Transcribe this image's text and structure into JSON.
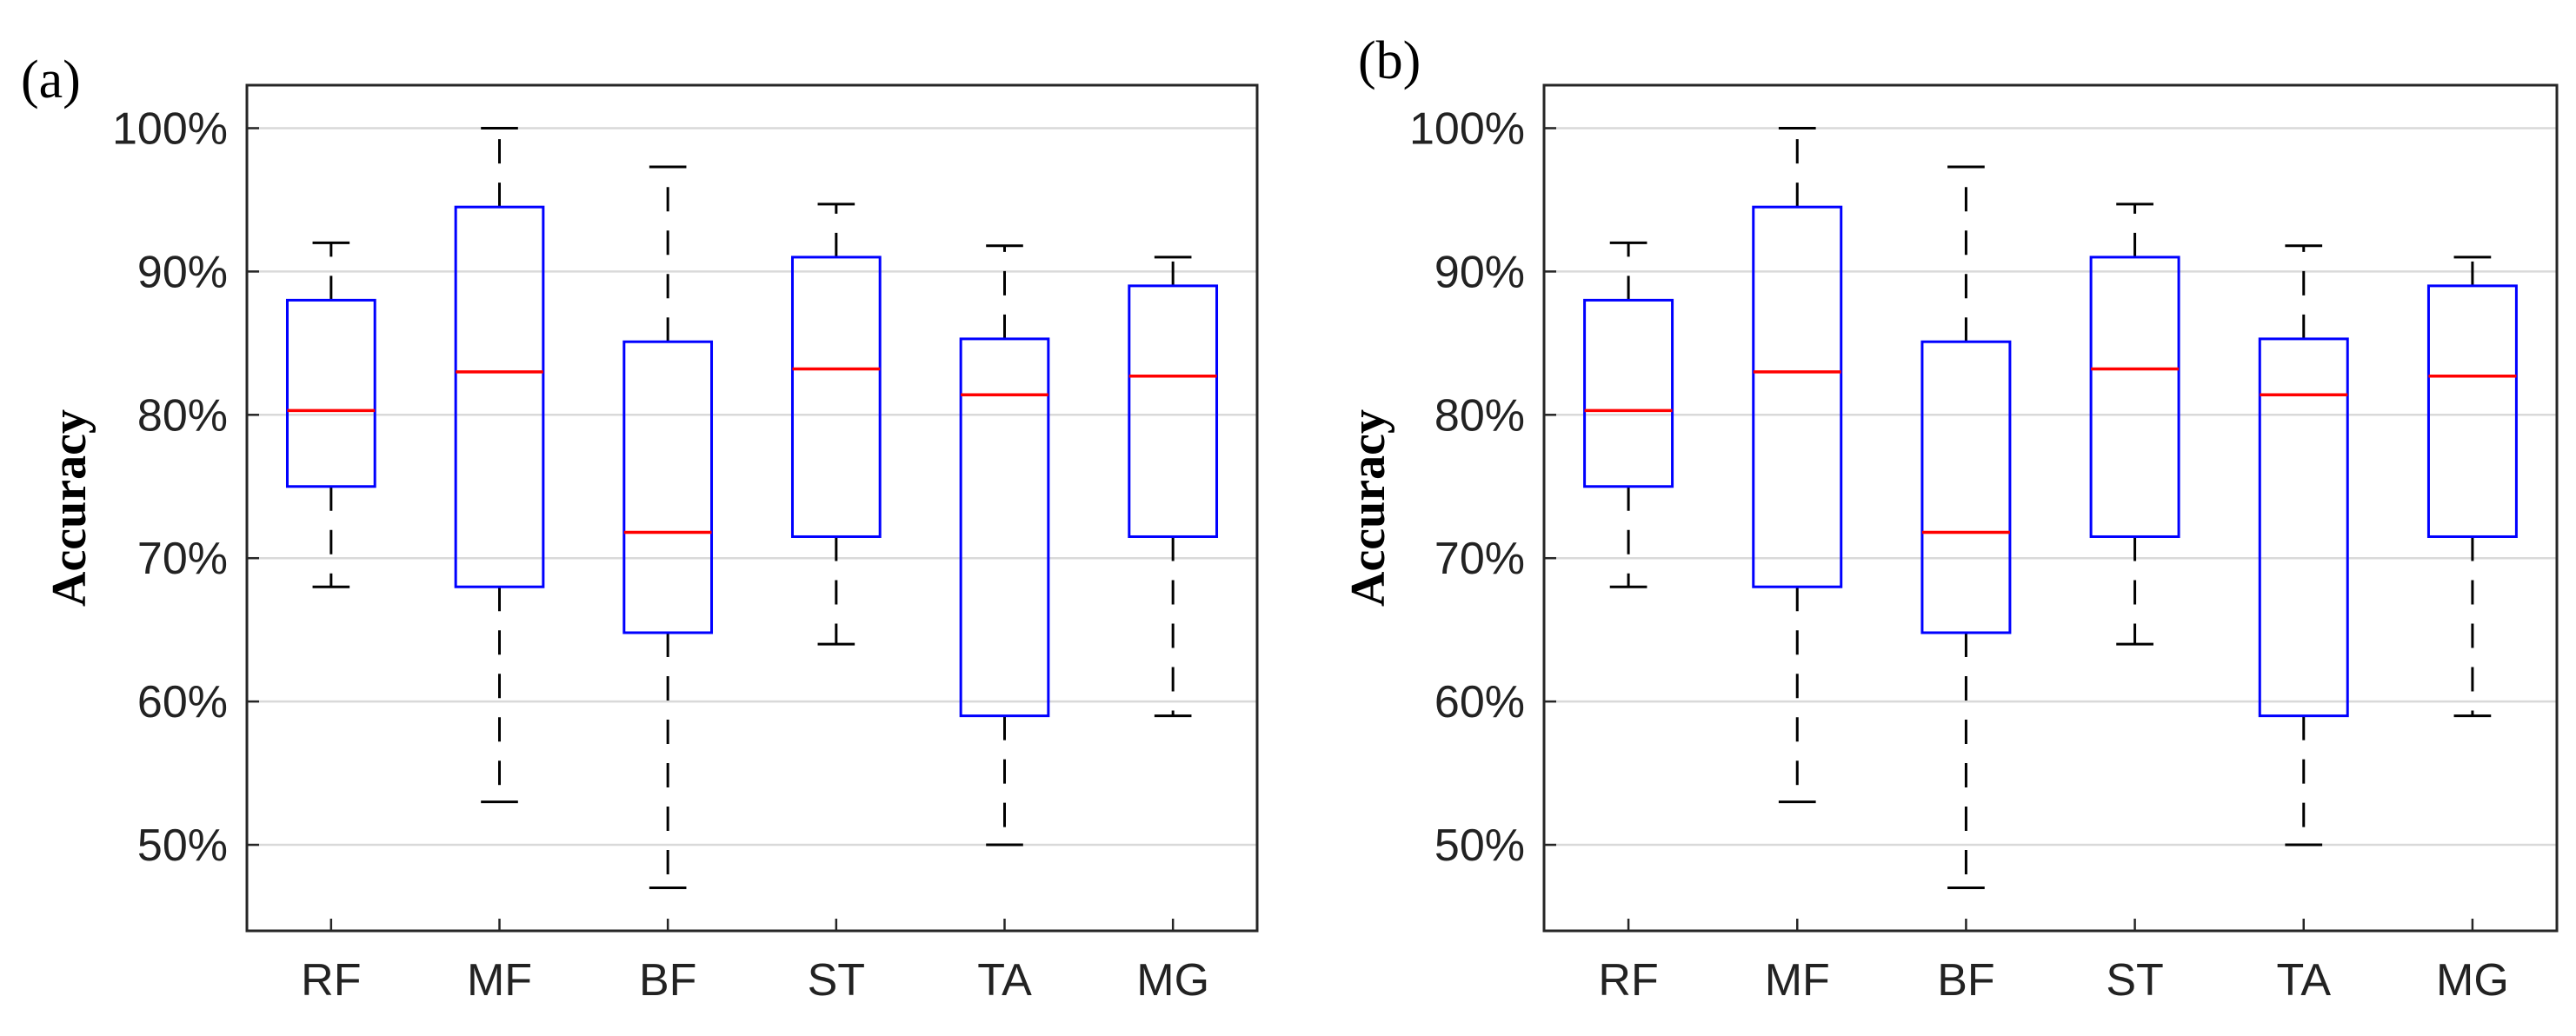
{
  "chart_data": [
    {
      "type": "box",
      "panel_label": "(a)",
      "ylabel": "Accuracy",
      "xlabel": "",
      "categories": [
        "RF",
        "MF",
        "BF",
        "ST",
        "TA",
        "MG"
      ],
      "ylim": [
        44,
        103
      ],
      "yticks": [
        50,
        60,
        70,
        80,
        90,
        100
      ],
      "ytick_labels": [
        "50%",
        "60%",
        "70%",
        "80%",
        "90%",
        "100%"
      ],
      "grid": true,
      "boxes": [
        {
          "min": 68,
          "q1": 75,
          "median": 80.3,
          "q3": 88,
          "max": 92
        },
        {
          "min": 53,
          "q1": 68,
          "median": 83,
          "q3": 94.5,
          "max": 100
        },
        {
          "min": 47,
          "q1": 64.8,
          "median": 71.8,
          "q3": 85.1,
          "max": 97.3
        },
        {
          "min": 64,
          "q1": 71.5,
          "median": 83.2,
          "q3": 91,
          "max": 94.7
        },
        {
          "min": 50,
          "q1": 59,
          "median": 81.4,
          "q3": 85.3,
          "max": 91.8
        },
        {
          "min": 59,
          "q1": 71.5,
          "median": 82.7,
          "q3": 89,
          "max": 91
        }
      ]
    },
    {
      "type": "box",
      "panel_label": "(b)",
      "ylabel": "Accuracy",
      "xlabel": "",
      "categories": [
        "RF",
        "MF",
        "BF",
        "ST",
        "TA",
        "MG"
      ],
      "ylim": [
        44,
        103
      ],
      "yticks": [
        50,
        60,
        70,
        80,
        90,
        100
      ],
      "ytick_labels": [
        "50%",
        "60%",
        "70%",
        "80%",
        "90%",
        "100%"
      ],
      "grid": true,
      "boxes": [
        {
          "min": 68,
          "q1": 75,
          "median": 80.3,
          "q3": 88,
          "max": 92
        },
        {
          "min": 53,
          "q1": 68,
          "median": 83,
          "q3": 94.5,
          "max": 100
        },
        {
          "min": 47,
          "q1": 64.8,
          "median": 71.8,
          "q3": 85.1,
          "max": 97.3
        },
        {
          "min": 64,
          "q1": 71.5,
          "median": 83.2,
          "q3": 91,
          "max": 94.7
        },
        {
          "min": 50,
          "q1": 59,
          "median": 81.4,
          "q3": 85.3,
          "max": 91.8
        },
        {
          "min": 59,
          "q1": 71.5,
          "median": 82.7,
          "q3": 89,
          "max": 91
        }
      ]
    }
  ]
}
